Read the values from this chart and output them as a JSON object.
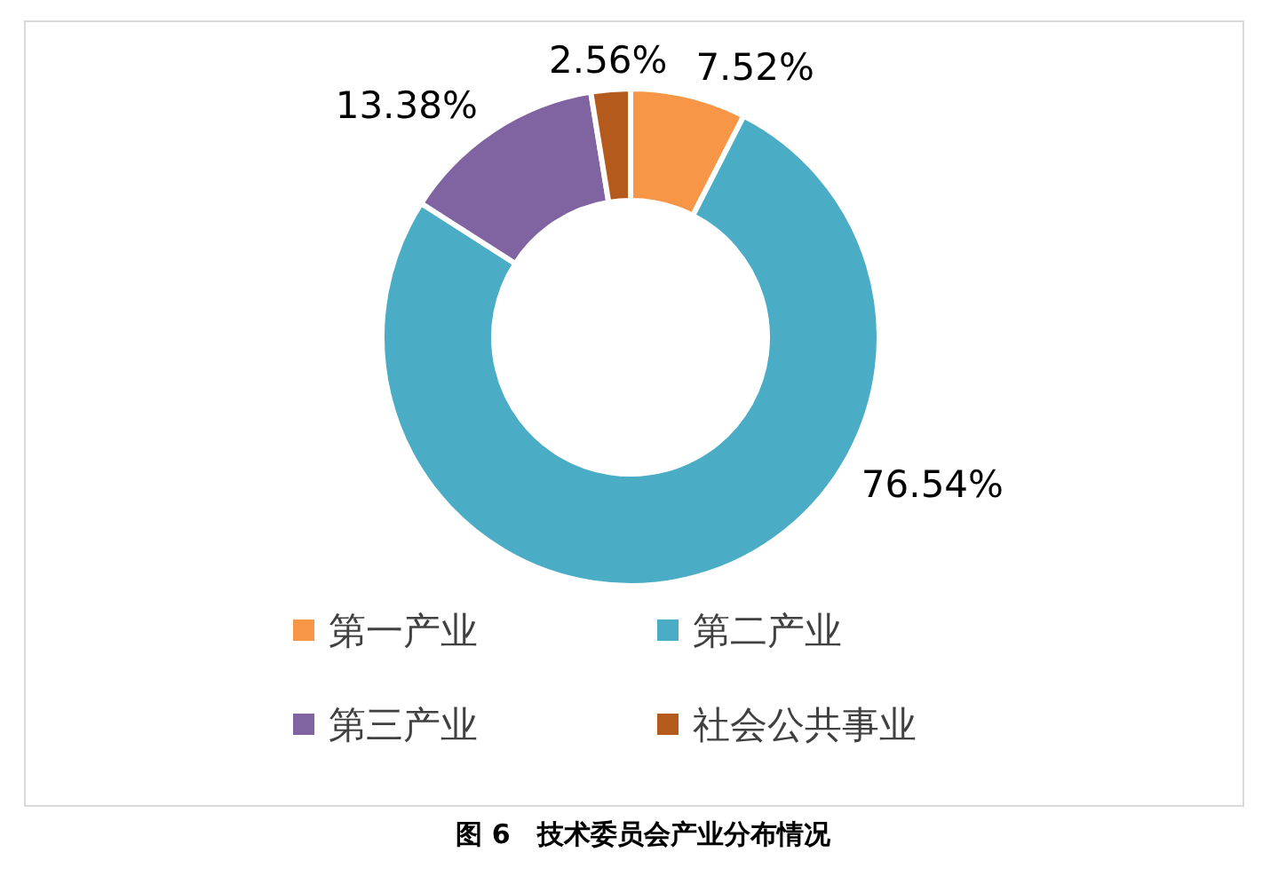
{
  "chart_data": {
    "type": "donut",
    "categories": [
      "第一产业",
      "第二产业",
      "第三产业",
      "社会公共事业"
    ],
    "values": [
      7.52,
      76.54,
      13.38,
      2.56
    ],
    "colors": [
      "#f79646",
      "#4bacc6",
      "#8064a2",
      "#b55a1d"
    ],
    "value_labels": [
      "7.52%",
      "76.54%",
      "13.38%",
      "2.56%"
    ],
    "legend": "bottom",
    "annotations": [
      "图 6　技术委员会产业分布情况"
    ]
  }
}
